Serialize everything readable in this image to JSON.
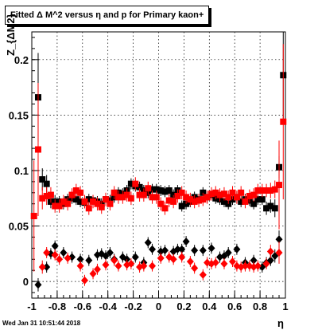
{
  "plot_title": "Fitted Δ M^2 versus η and p for Primary kaon+",
  "timestamp": "Wed Jan 31 10:51:44 2018",
  "colors": {
    "black": "#000000",
    "red": "#ff0000",
    "grid": "#000000"
  },
  "chart_data": {
    "type": "scatter",
    "title": "Fitted Δ M^2 versus η and p for Primary kaon+",
    "xlabel": "η",
    "ylabel": "Z_{ΔM2}",
    "xlim": [
      -1,
      1
    ],
    "ylim": [
      -0.015,
      0.225
    ],
    "grid": true,
    "x_ticks": [
      "-1",
      "-0.8",
      "-0.6",
      "-0.4",
      "-0.2",
      "0",
      "0.2",
      "0.4",
      "0.6",
      "0.8",
      "1"
    ],
    "y_ticks": [
      "0",
      "0.05",
      "0.1",
      "0.15",
      "0.2"
    ],
    "series": [
      {
        "marker": "square",
        "color": "#000000",
        "x": [
          -0.95,
          -0.917,
          -0.883,
          -0.85,
          -0.817,
          -0.783,
          -0.75,
          -0.717,
          -0.683,
          -0.65,
          -0.617,
          -0.583,
          -0.55,
          -0.517,
          -0.483,
          -0.45,
          -0.417,
          -0.383,
          -0.35,
          -0.317,
          -0.283,
          -0.25,
          -0.217,
          -0.183,
          -0.15,
          -0.117,
          -0.083,
          -0.05,
          -0.017,
          0.017,
          0.05,
          0.083,
          0.117,
          0.15,
          0.183,
          0.217,
          0.25,
          0.283,
          0.317,
          0.35,
          0.383,
          0.417,
          0.45,
          0.483,
          0.517,
          0.55,
          0.583,
          0.617,
          0.65,
          0.683,
          0.717,
          0.75,
          0.783,
          0.817,
          0.85,
          0.883,
          0.917,
          0.95,
          0.983
        ],
        "y": [
          0.166,
          0.092,
          0.088,
          0.072,
          0.072,
          0.072,
          0.07,
          0.074,
          0.075,
          0.074,
          0.072,
          0.071,
          0.074,
          0.073,
          0.072,
          0.07,
          0.074,
          0.073,
          0.076,
          0.08,
          0.079,
          0.082,
          0.088,
          0.086,
          0.085,
          0.082,
          0.08,
          0.083,
          0.083,
          0.082,
          0.081,
          0.082,
          0.078,
          0.082,
          0.068,
          0.07,
          0.072,
          0.076,
          0.074,
          0.08,
          0.076,
          0.078,
          0.075,
          0.074,
          0.072,
          0.07,
          0.074,
          0.076,
          0.072,
          0.074,
          0.073,
          0.07,
          0.074,
          0.074,
          0.066,
          0.068,
          0.066,
          0.103,
          0.186
        ],
        "yerr": [
          0.04,
          0.01,
          0.008,
          0.006,
          0.006,
          0.005,
          0.005,
          0.005,
          0.005,
          0.005,
          0.005,
          0.005,
          0.005,
          0.005,
          0.005,
          0.005,
          0.005,
          0.005,
          0.005,
          0.005,
          0.005,
          0.005,
          0.005,
          0.005,
          0.005,
          0.005,
          0.005,
          0.005,
          0.005,
          0.005,
          0.005,
          0.005,
          0.005,
          0.005,
          0.005,
          0.005,
          0.005,
          0.005,
          0.005,
          0.005,
          0.005,
          0.005,
          0.005,
          0.005,
          0.005,
          0.005,
          0.005,
          0.005,
          0.005,
          0.005,
          0.005,
          0.005,
          0.005,
          0.005,
          0.006,
          0.006,
          0.008,
          0.01,
          0.04
        ]
      },
      {
        "marker": "square",
        "color": "#ff0000",
        "x": [
          -0.983,
          -0.95,
          -0.917,
          -0.883,
          -0.85,
          -0.817,
          -0.783,
          -0.75,
          -0.717,
          -0.683,
          -0.65,
          -0.617,
          -0.583,
          -0.55,
          -0.517,
          -0.483,
          -0.45,
          -0.417,
          -0.383,
          -0.35,
          -0.317,
          -0.283,
          -0.25,
          -0.217,
          -0.183,
          -0.15,
          -0.117,
          -0.083,
          -0.05,
          -0.017,
          0.017,
          0.05,
          0.083,
          0.117,
          0.15,
          0.183,
          0.217,
          0.25,
          0.283,
          0.317,
          0.35,
          0.383,
          0.417,
          0.45,
          0.483,
          0.517,
          0.55,
          0.583,
          0.617,
          0.65,
          0.683,
          0.717,
          0.75,
          0.783,
          0.817,
          0.85,
          0.883,
          0.917,
          0.95,
          0.983
        ],
        "y": [
          0.059,
          0.119,
          0.075,
          0.077,
          0.078,
          0.068,
          0.068,
          0.072,
          0.07,
          0.078,
          0.082,
          0.08,
          0.072,
          0.066,
          0.072,
          0.07,
          0.067,
          0.074,
          0.07,
          0.08,
          0.076,
          0.076,
          0.078,
          0.075,
          0.088,
          0.078,
          0.078,
          0.084,
          0.076,
          0.076,
          0.07,
          0.066,
          0.073,
          0.072,
          0.077,
          0.08,
          0.076,
          0.074,
          0.072,
          0.073,
          0.074,
          0.076,
          0.079,
          0.08,
          0.078,
          0.079,
          0.076,
          0.08,
          0.076,
          0.08,
          0.072,
          0.077,
          0.078,
          0.082,
          0.082,
          0.082,
          0.082,
          0.083,
          0.087,
          0.144
        ],
        "yerr": [
          0.05,
          0.06,
          0.01,
          0.008,
          0.007,
          0.006,
          0.006,
          0.006,
          0.006,
          0.006,
          0.006,
          0.006,
          0.006,
          0.006,
          0.006,
          0.006,
          0.006,
          0.006,
          0.006,
          0.006,
          0.006,
          0.006,
          0.006,
          0.006,
          0.006,
          0.006,
          0.006,
          0.006,
          0.006,
          0.006,
          0.006,
          0.006,
          0.006,
          0.006,
          0.006,
          0.006,
          0.006,
          0.006,
          0.006,
          0.006,
          0.006,
          0.006,
          0.006,
          0.006,
          0.006,
          0.006,
          0.006,
          0.006,
          0.006,
          0.006,
          0.006,
          0.006,
          0.006,
          0.006,
          0.006,
          0.006,
          0.007,
          0.008,
          0.04,
          0.07
        ]
      },
      {
        "marker": "diamond",
        "color": "#000000",
        "x": [
          -0.95,
          -0.883,
          -0.85,
          -0.817,
          -0.75,
          -0.683,
          -0.617,
          -0.55,
          -0.483,
          -0.45,
          -0.417,
          -0.383,
          -0.35,
          -0.283,
          -0.25,
          -0.183,
          -0.117,
          -0.083,
          -0.05,
          0.017,
          0.05,
          0.117,
          0.15,
          0.183,
          0.217,
          0.283,
          0.35,
          0.417,
          0.483,
          0.517,
          0.55,
          0.617,
          0.683,
          0.75,
          0.817,
          0.85,
          0.883,
          0.917,
          0.95
        ],
        "y": [
          -0.003,
          0.013,
          0.025,
          0.032,
          0.026,
          0.022,
          0.02,
          0.019,
          0.024,
          0.025,
          0.023,
          0.026,
          0.02,
          0.022,
          0.02,
          0.022,
          0.017,
          0.035,
          0.029,
          0.027,
          0.028,
          0.027,
          0.029,
          0.029,
          0.036,
          0.028,
          0.028,
          0.03,
          0.022,
          0.023,
          0.026,
          0.029,
          0.017,
          0.019,
          0.013,
          0.017,
          0.019,
          0.023,
          0.038
        ],
        "yerr": [
          0.006,
          0.005,
          0.005,
          0.005,
          0.005,
          0.005,
          0.005,
          0.005,
          0.005,
          0.005,
          0.005,
          0.005,
          0.005,
          0.005,
          0.005,
          0.005,
          0.005,
          0.005,
          0.005,
          0.005,
          0.005,
          0.005,
          0.005,
          0.005,
          0.005,
          0.005,
          0.005,
          0.005,
          0.005,
          0.005,
          0.005,
          0.005,
          0.005,
          0.005,
          0.005,
          0.005,
          0.005,
          0.006,
          0.008
        ]
      },
      {
        "marker": "diamond",
        "color": "#ff0000",
        "x": [
          -0.917,
          -0.883,
          -0.817,
          -0.783,
          -0.717,
          -0.617,
          -0.583,
          -0.517,
          -0.483,
          -0.417,
          -0.35,
          -0.317,
          -0.25,
          -0.217,
          -0.15,
          -0.117,
          -0.05,
          0.017,
          0.083,
          0.117,
          0.183,
          0.25,
          0.283,
          0.35,
          0.383,
          0.417,
          0.45,
          0.517,
          0.583,
          0.617,
          0.65,
          0.683,
          0.717,
          0.75,
          0.783,
          0.85,
          0.883,
          0.95
        ],
        "y": [
          0.013,
          0.026,
          0.024,
          0.02,
          0.021,
          0.014,
          0.001,
          0.007,
          0.011,
          0.015,
          0.019,
          0.014,
          0.015,
          0.016,
          0.013,
          0.014,
          0.014,
          0.021,
          0.022,
          0.02,
          0.022,
          0.018,
          0.012,
          0.006,
          0.017,
          0.016,
          0.017,
          0.016,
          0.018,
          0.014,
          0.013,
          0.014,
          0.014,
          0.013,
          0.014,
          0.016,
          0.027,
          0.026
        ],
        "yerr": [
          0.006,
          0.005,
          0.005,
          0.005,
          0.005,
          0.005,
          0.005,
          0.005,
          0.005,
          0.005,
          0.005,
          0.005,
          0.005,
          0.005,
          0.005,
          0.005,
          0.005,
          0.005,
          0.005,
          0.005,
          0.005,
          0.005,
          0.005,
          0.005,
          0.005,
          0.005,
          0.005,
          0.005,
          0.005,
          0.005,
          0.005,
          0.005,
          0.005,
          0.005,
          0.005,
          0.005,
          0.006,
          0.01
        ]
      }
    ]
  }
}
